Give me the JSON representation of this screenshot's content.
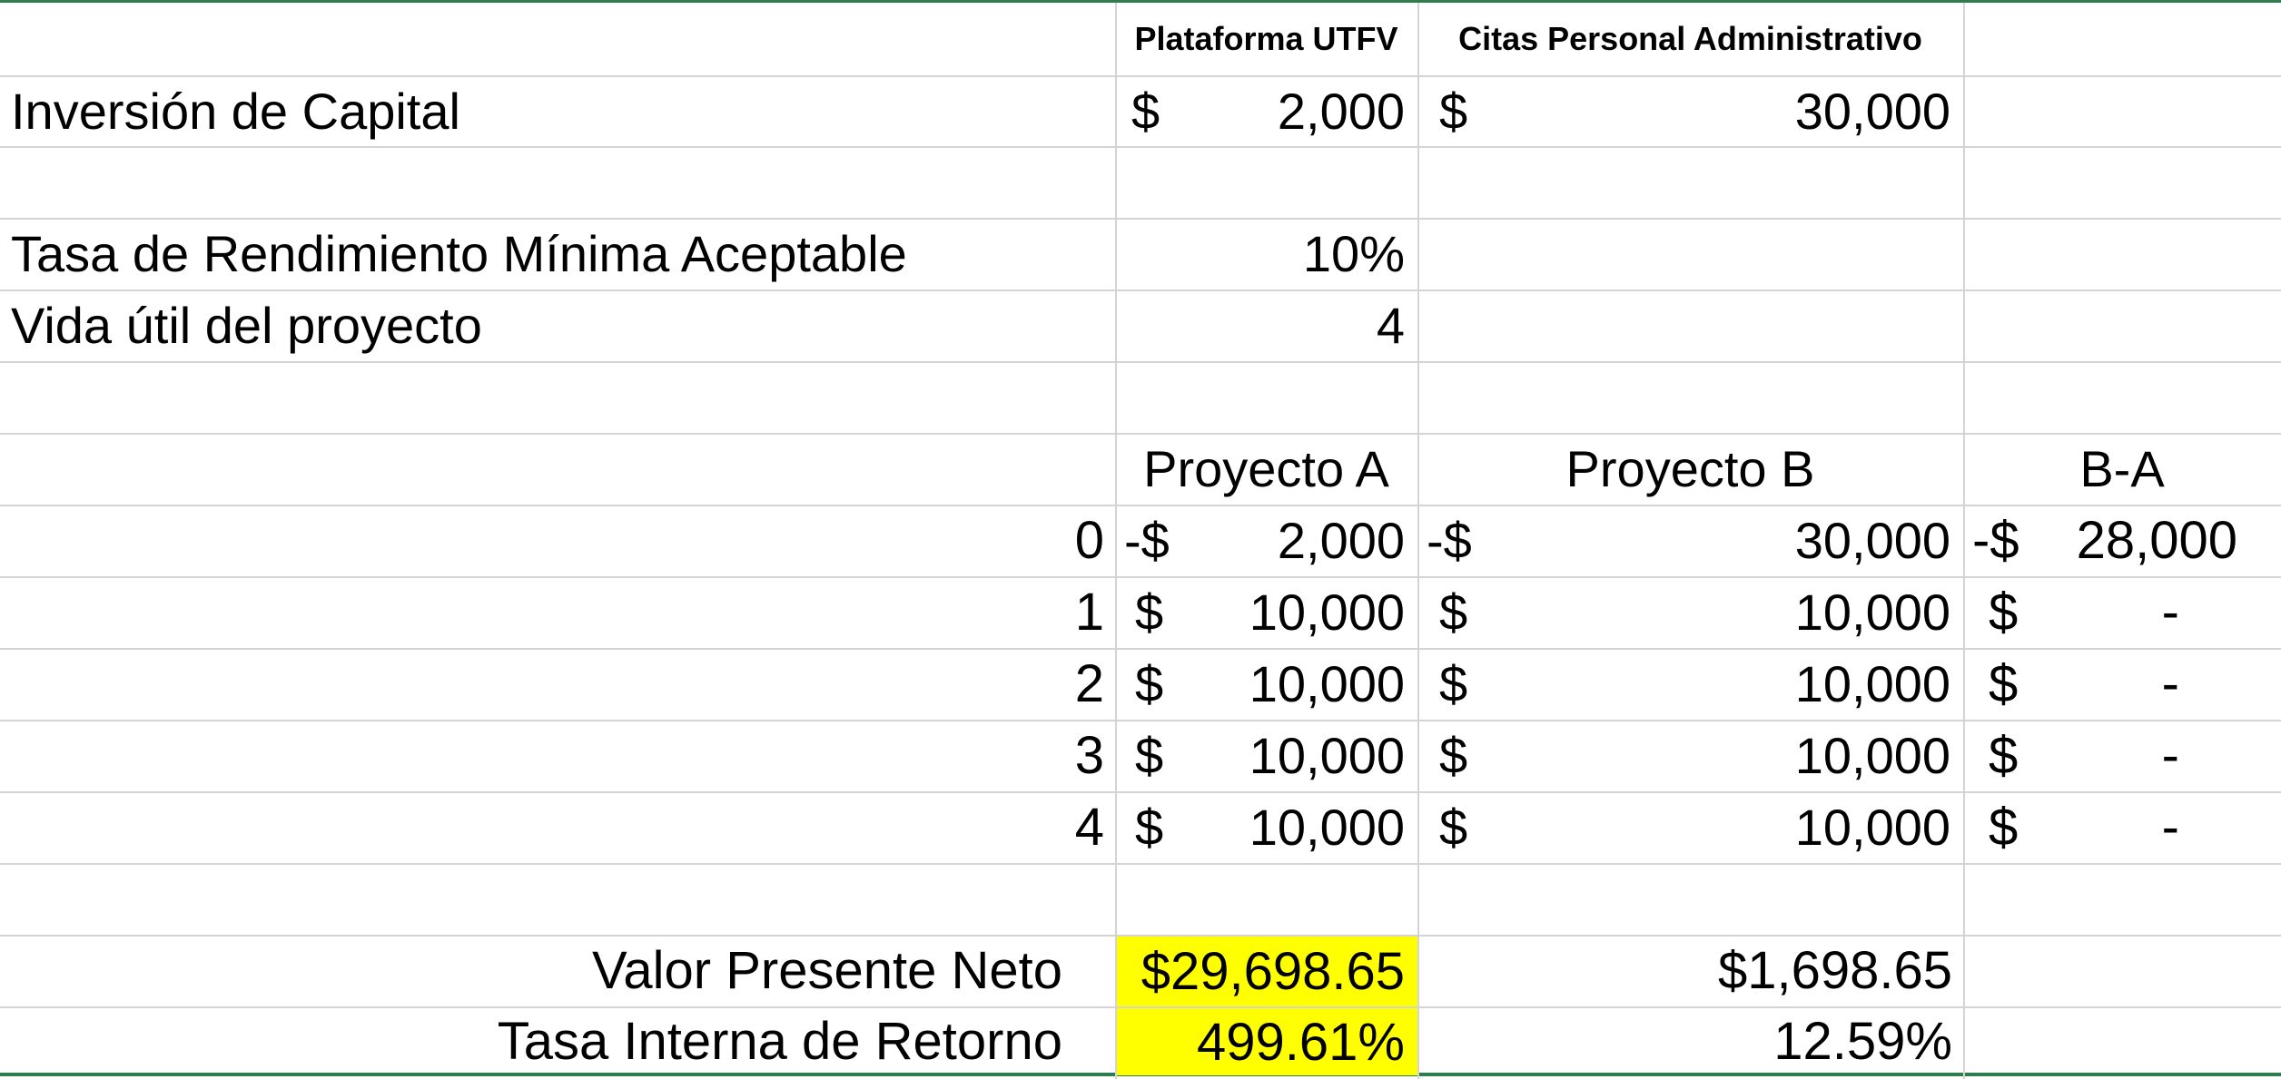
{
  "headers": {
    "col_c": "Plataforma UTFV",
    "col_d": "Citas Personal Administrativo"
  },
  "inversion": {
    "label": "Inversión de Capital",
    "a_sign": "$",
    "a_value": "2,000",
    "b_sign": "$",
    "b_value": "30,000"
  },
  "tasa_minima": {
    "label": "Tasa de Rendimiento Mínima Aceptable",
    "value": "10%"
  },
  "vida_util": {
    "label": "Vida útil del proyecto",
    "value": "4"
  },
  "projects": {
    "a": "Proyecto A",
    "b": "Proyecto B",
    "diff": "B-A"
  },
  "periods": [
    {
      "n": "0",
      "a_sign": "-$",
      "a_value": "2,000",
      "b_sign": "-$",
      "b_value": "30,000",
      "d_sign": "-$",
      "d_value": "28,000"
    },
    {
      "n": "1",
      "a_sign": "$",
      "a_value": "10,000",
      "b_sign": "$",
      "b_value": "10,000",
      "d_sign": "$",
      "d_value": "-"
    },
    {
      "n": "2",
      "a_sign": "$",
      "a_value": "10,000",
      "b_sign": "$",
      "b_value": "10,000",
      "d_sign": "$",
      "d_value": "-"
    },
    {
      "n": "3",
      "a_sign": "$",
      "a_value": "10,000",
      "b_sign": "$",
      "b_value": "10,000",
      "d_sign": "$",
      "d_value": "-"
    },
    {
      "n": "4",
      "a_sign": "$",
      "a_value": "10,000",
      "b_sign": "$",
      "b_value": "10,000",
      "d_sign": "$",
      "d_value": "-"
    }
  ],
  "vpn": {
    "label": "Valor Presente Neto",
    "a": "$29,698.65",
    "b": "$1,698.65"
  },
  "tir": {
    "label": "Tasa Interna de Retorno",
    "a": "499.61%",
    "b": "12.59%"
  },
  "colors": {
    "highlight": "#ffff00",
    "frame": "#2e7d4f",
    "gridline": "#d4d4d4"
  }
}
